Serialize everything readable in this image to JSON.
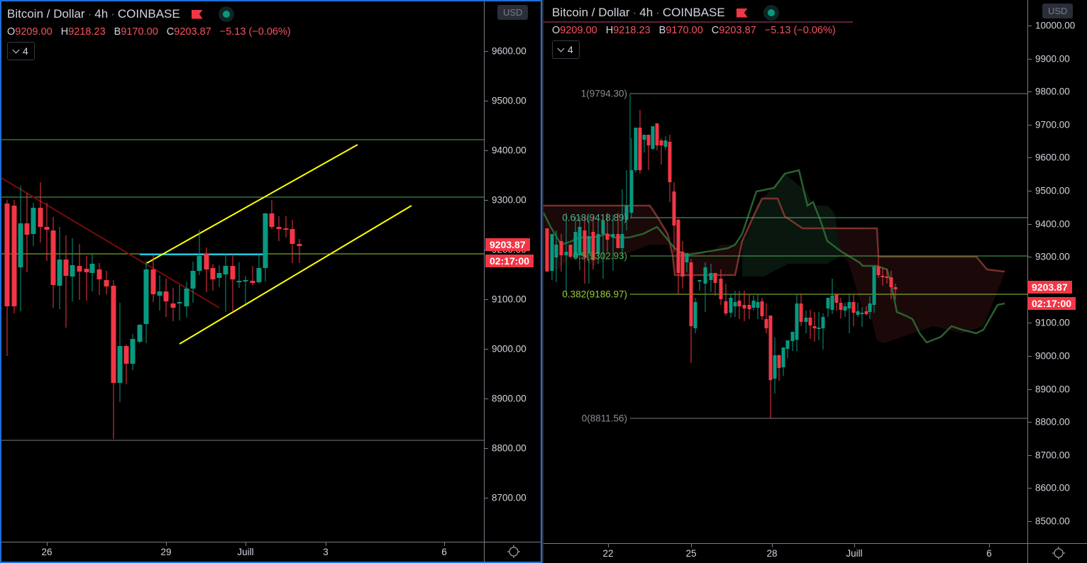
{
  "symbol": {
    "title": "Bitcoin / Dollar",
    "interval": "4h",
    "exchange": "COINBASE",
    "flag_icon": "red-flag-icon",
    "status_icon": "market-open-dot-icon"
  },
  "ohlc": {
    "o_label": "O",
    "o_value": "9209.00",
    "h_label": "H",
    "h_value": "9218.23",
    "b_label": "B",
    "b_value": "9170.00",
    "c_label": "C",
    "c_value": "9203.87",
    "change": "−5.13 (−0.06%)"
  },
  "indicators_toggle": {
    "count": "4"
  },
  "colors": {
    "up": "#089981",
    "down": "#f23645",
    "accent_border": "#1e6fd9",
    "channel": "#ffff00",
    "trend": "#7a0a0a",
    "hline": "#4caf50",
    "cyan": "#26c6da"
  },
  "left_chart": {
    "currency": "USD",
    "price_labels": [
      "9600.00",
      "9500.00",
      "9400.00",
      "9300.00",
      "9200.00",
      "9100.00",
      "9000.00",
      "8900.00",
      "8800.00",
      "8700.00"
    ],
    "last_price": "9203.87",
    "countdown": "02:17:00",
    "x_labels": [
      "26",
      "29",
      "Juill",
      "3",
      "6"
    ]
  },
  "right_chart": {
    "currency": "USD",
    "price_labels": [
      "10000.00",
      "9900.00",
      "9800.00",
      "9700.00",
      "9600.00",
      "9500.00",
      "9400.00",
      "9300.00",
      "9200.00",
      "9100.00",
      "9000.00",
      "8900.00",
      "8800.00",
      "8700.00",
      "8600.00",
      "8500.00"
    ],
    "last_price": "9203.87",
    "countdown": "02:17:00",
    "x_labels": [
      "22",
      "25",
      "28",
      "Juill",
      "6"
    ],
    "fib": {
      "l1": "1(9794.30)",
      "l0618": "0.618(9418.89)",
      "l05": "0.5(9302.93)",
      "l0382": "0.382(9186.97)",
      "l0": "0(8811.56)"
    }
  }
}
